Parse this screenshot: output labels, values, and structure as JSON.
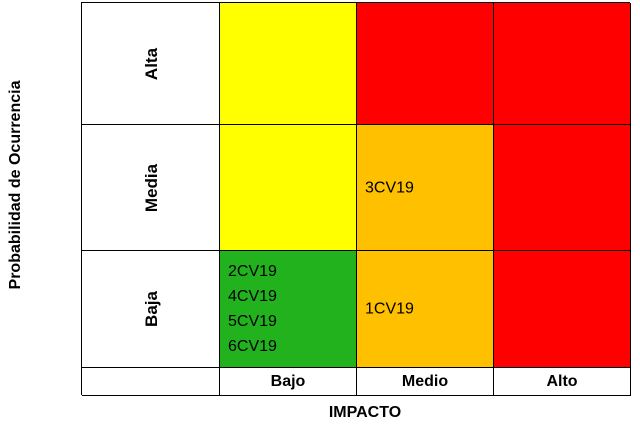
{
  "axes": {
    "y_title": "Probabilidad de Ocurrencia",
    "x_title": "IMPACTO"
  },
  "rows": [
    {
      "label": "Alta"
    },
    {
      "label": "Media"
    },
    {
      "label": "Baja"
    }
  ],
  "columns": [
    {
      "label": "Bajo"
    },
    {
      "label": "Medio"
    },
    {
      "label": "Alto"
    }
  ],
  "cells": {
    "alta_bajo": {
      "color": "#ffff00",
      "risks": []
    },
    "alta_medio": {
      "color": "#ff0000",
      "risks": []
    },
    "alta_alto": {
      "color": "#ff0000",
      "risks": []
    },
    "media_bajo": {
      "color": "#ffff00",
      "risks": []
    },
    "media_medio": {
      "color": "#ffc000",
      "risks": [
        "3CV19"
      ]
    },
    "media_alto": {
      "color": "#ff0000",
      "risks": []
    },
    "baja_bajo": {
      "color": "#22b21e",
      "risks": [
        "2CV19",
        "4CV19",
        "5CV19",
        "6CV19"
      ]
    },
    "baja_medio": {
      "color": "#ffc000",
      "risks": [
        "1CV19"
      ]
    },
    "baja_alto": {
      "color": "#ff0000",
      "risks": []
    }
  }
}
